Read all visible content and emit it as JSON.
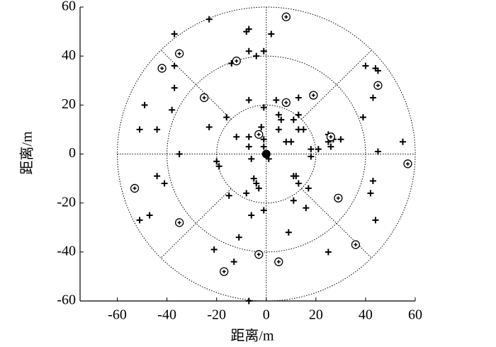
{
  "chart_data": {
    "type": "scatter",
    "xlabel": "距离/m",
    "ylabel": "距离/m",
    "xlim": [
      -75,
      60
    ],
    "ylim": [
      -60,
      60
    ],
    "xticks": [
      -60,
      -40,
      -20,
      0,
      20,
      40,
      60
    ],
    "yticks": [
      -60,
      -40,
      -20,
      0,
      20,
      40,
      60
    ],
    "rings": [
      20,
      40,
      60
    ],
    "series": [
      {
        "marker": "plus",
        "color": "#000000",
        "x": [
          2,
          -7,
          -8,
          -23,
          -37,
          -37,
          -37,
          -49,
          -38,
          -44,
          -51,
          -35,
          -44,
          -41,
          -47,
          -51,
          -21,
          -13,
          -7,
          -14,
          -7,
          -4,
          -1,
          -7,
          -16,
          -23,
          -12,
          -7,
          -7,
          -2,
          -1,
          -1,
          -1,
          1,
          -6,
          -20,
          -19,
          -5,
          -4,
          -3,
          -8,
          -15,
          -6,
          -1,
          -11,
          5,
          6,
          5,
          4,
          11,
          13,
          13,
          8,
          10,
          13,
          18,
          21,
          18,
          15,
          25,
          27,
          30,
          25,
          26,
          11,
          12,
          13,
          17,
          11,
          16,
          9,
          25,
          39,
          40,
          43,
          44,
          45,
          45,
          42,
          43,
          44,
          55
        ],
        "y": [
          49,
          51,
          50,
          55,
          49,
          36,
          27,
          20,
          18,
          10,
          10,
          0,
          -9,
          -12,
          -25,
          -27,
          -39,
          -44,
          -60,
          37,
          42,
          40,
          42,
          22,
          15,
          11,
          7,
          7,
          3,
          11,
          19,
          6,
          3,
          -2,
          -2,
          -3,
          -5,
          -10,
          -12,
          -14,
          -16,
          -17,
          -25,
          -23,
          -34,
          16,
          14,
          10,
          22,
          14,
          23,
          16,
          5,
          5,
          10,
          2,
          2,
          -1,
          10,
          8,
          6,
          6,
          5,
          3,
          -9,
          -9,
          -12,
          -14,
          -19,
          -22,
          -32,
          -40,
          15,
          36,
          23,
          35,
          34,
          1,
          -16,
          -11,
          -27,
          5
        ]
      },
      {
        "marker": "circle",
        "color": "#000000",
        "x": [
          8,
          -35,
          -42,
          -12,
          -25,
          8,
          19,
          -3,
          26,
          45,
          57,
          -53,
          -35,
          29,
          36,
          -3,
          5,
          -17
        ],
        "y": [
          56,
          41,
          35,
          38,
          23,
          21,
          24,
          8,
          7,
          28,
          -4,
          -14,
          -28,
          -18,
          -37,
          -41,
          -44,
          -48
        ]
      },
      {
        "marker": "dot",
        "color": "#000000",
        "x": [
          0
        ],
        "y": [
          0
        ]
      }
    ]
  }
}
